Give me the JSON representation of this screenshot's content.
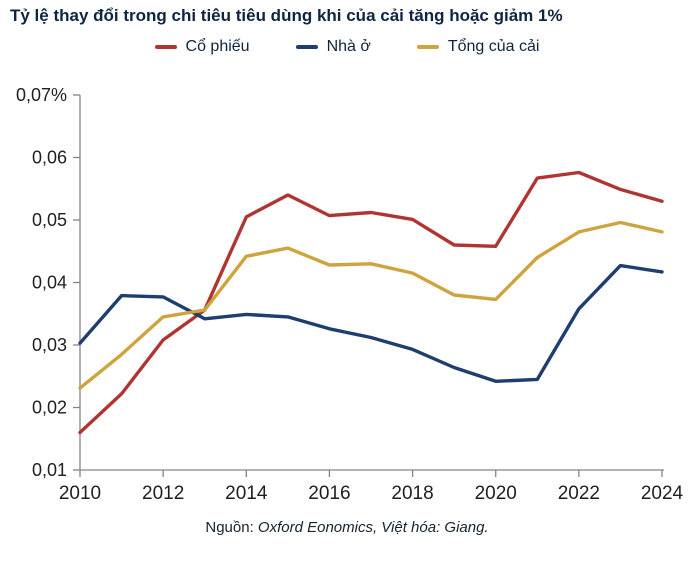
{
  "title": "Tỷ lệ thay đổi trong chi tiêu tiêu dùng khi của cải tăng hoặc giảm 1%",
  "source": {
    "prefix": "Nguồn: ",
    "credit": "Oxford Eonomics, Việt hóa: Giang."
  },
  "colors": {
    "title_text": "#0e2541",
    "legend_text": "#10253d",
    "axis_line": "#858585",
    "tick_text": "#1f1f1f",
    "background": "#ffffff"
  },
  "chart_data": {
    "type": "line",
    "title": "Tỷ lệ thay đổi trong chi tiêu tiêu dùng khi của cải tăng hoặc giảm 1%",
    "x": [
      2010,
      2011,
      2012,
      2013,
      2014,
      2015,
      2016,
      2017,
      2018,
      2019,
      2020,
      2021,
      2022,
      2023,
      2024
    ],
    "series": [
      {
        "name": "Cổ phiếu",
        "color": "#b03532",
        "values": [
          0.016,
          0.0222,
          0.0308,
          0.0356,
          0.0505,
          0.054,
          0.0507,
          0.0512,
          0.0501,
          0.046,
          0.0458,
          0.0567,
          0.0576,
          0.0549,
          0.053
        ]
      },
      {
        "name": "Nhà ở",
        "color": "#1d3e6f",
        "values": [
          0.0303,
          0.0379,
          0.0377,
          0.0342,
          0.0349,
          0.0345,
          0.0326,
          0.0312,
          0.0293,
          0.0264,
          0.0242,
          0.0245,
          0.0358,
          0.0427,
          0.0417
        ]
      },
      {
        "name": "Tổng của cải",
        "color": "#cda43e",
        "values": [
          0.0231,
          0.0285,
          0.0345,
          0.0356,
          0.0442,
          0.0455,
          0.0428,
          0.043,
          0.0415,
          0.038,
          0.0373,
          0.044,
          0.0481,
          0.0496,
          0.0481
        ]
      }
    ],
    "y_axis": {
      "min": 0.01,
      "max": 0.07,
      "ticks": [
        0.07,
        0.06,
        0.05,
        0.04,
        0.03,
        0.02,
        0.01
      ],
      "tick_labels": [
        "0,07%",
        "0,06",
        "0,05",
        "0,04",
        "0,03",
        "0,02",
        "0,01"
      ],
      "unit": "%"
    },
    "x_axis": {
      "ticks": [
        2010,
        2012,
        2014,
        2016,
        2018,
        2020,
        2022,
        2024
      ],
      "tick_labels": [
        "2010",
        "2012",
        "2014",
        "2016",
        "2018",
        "2020",
        "2022",
        "2024"
      ]
    },
    "legend_position": "top",
    "grid": false
  }
}
